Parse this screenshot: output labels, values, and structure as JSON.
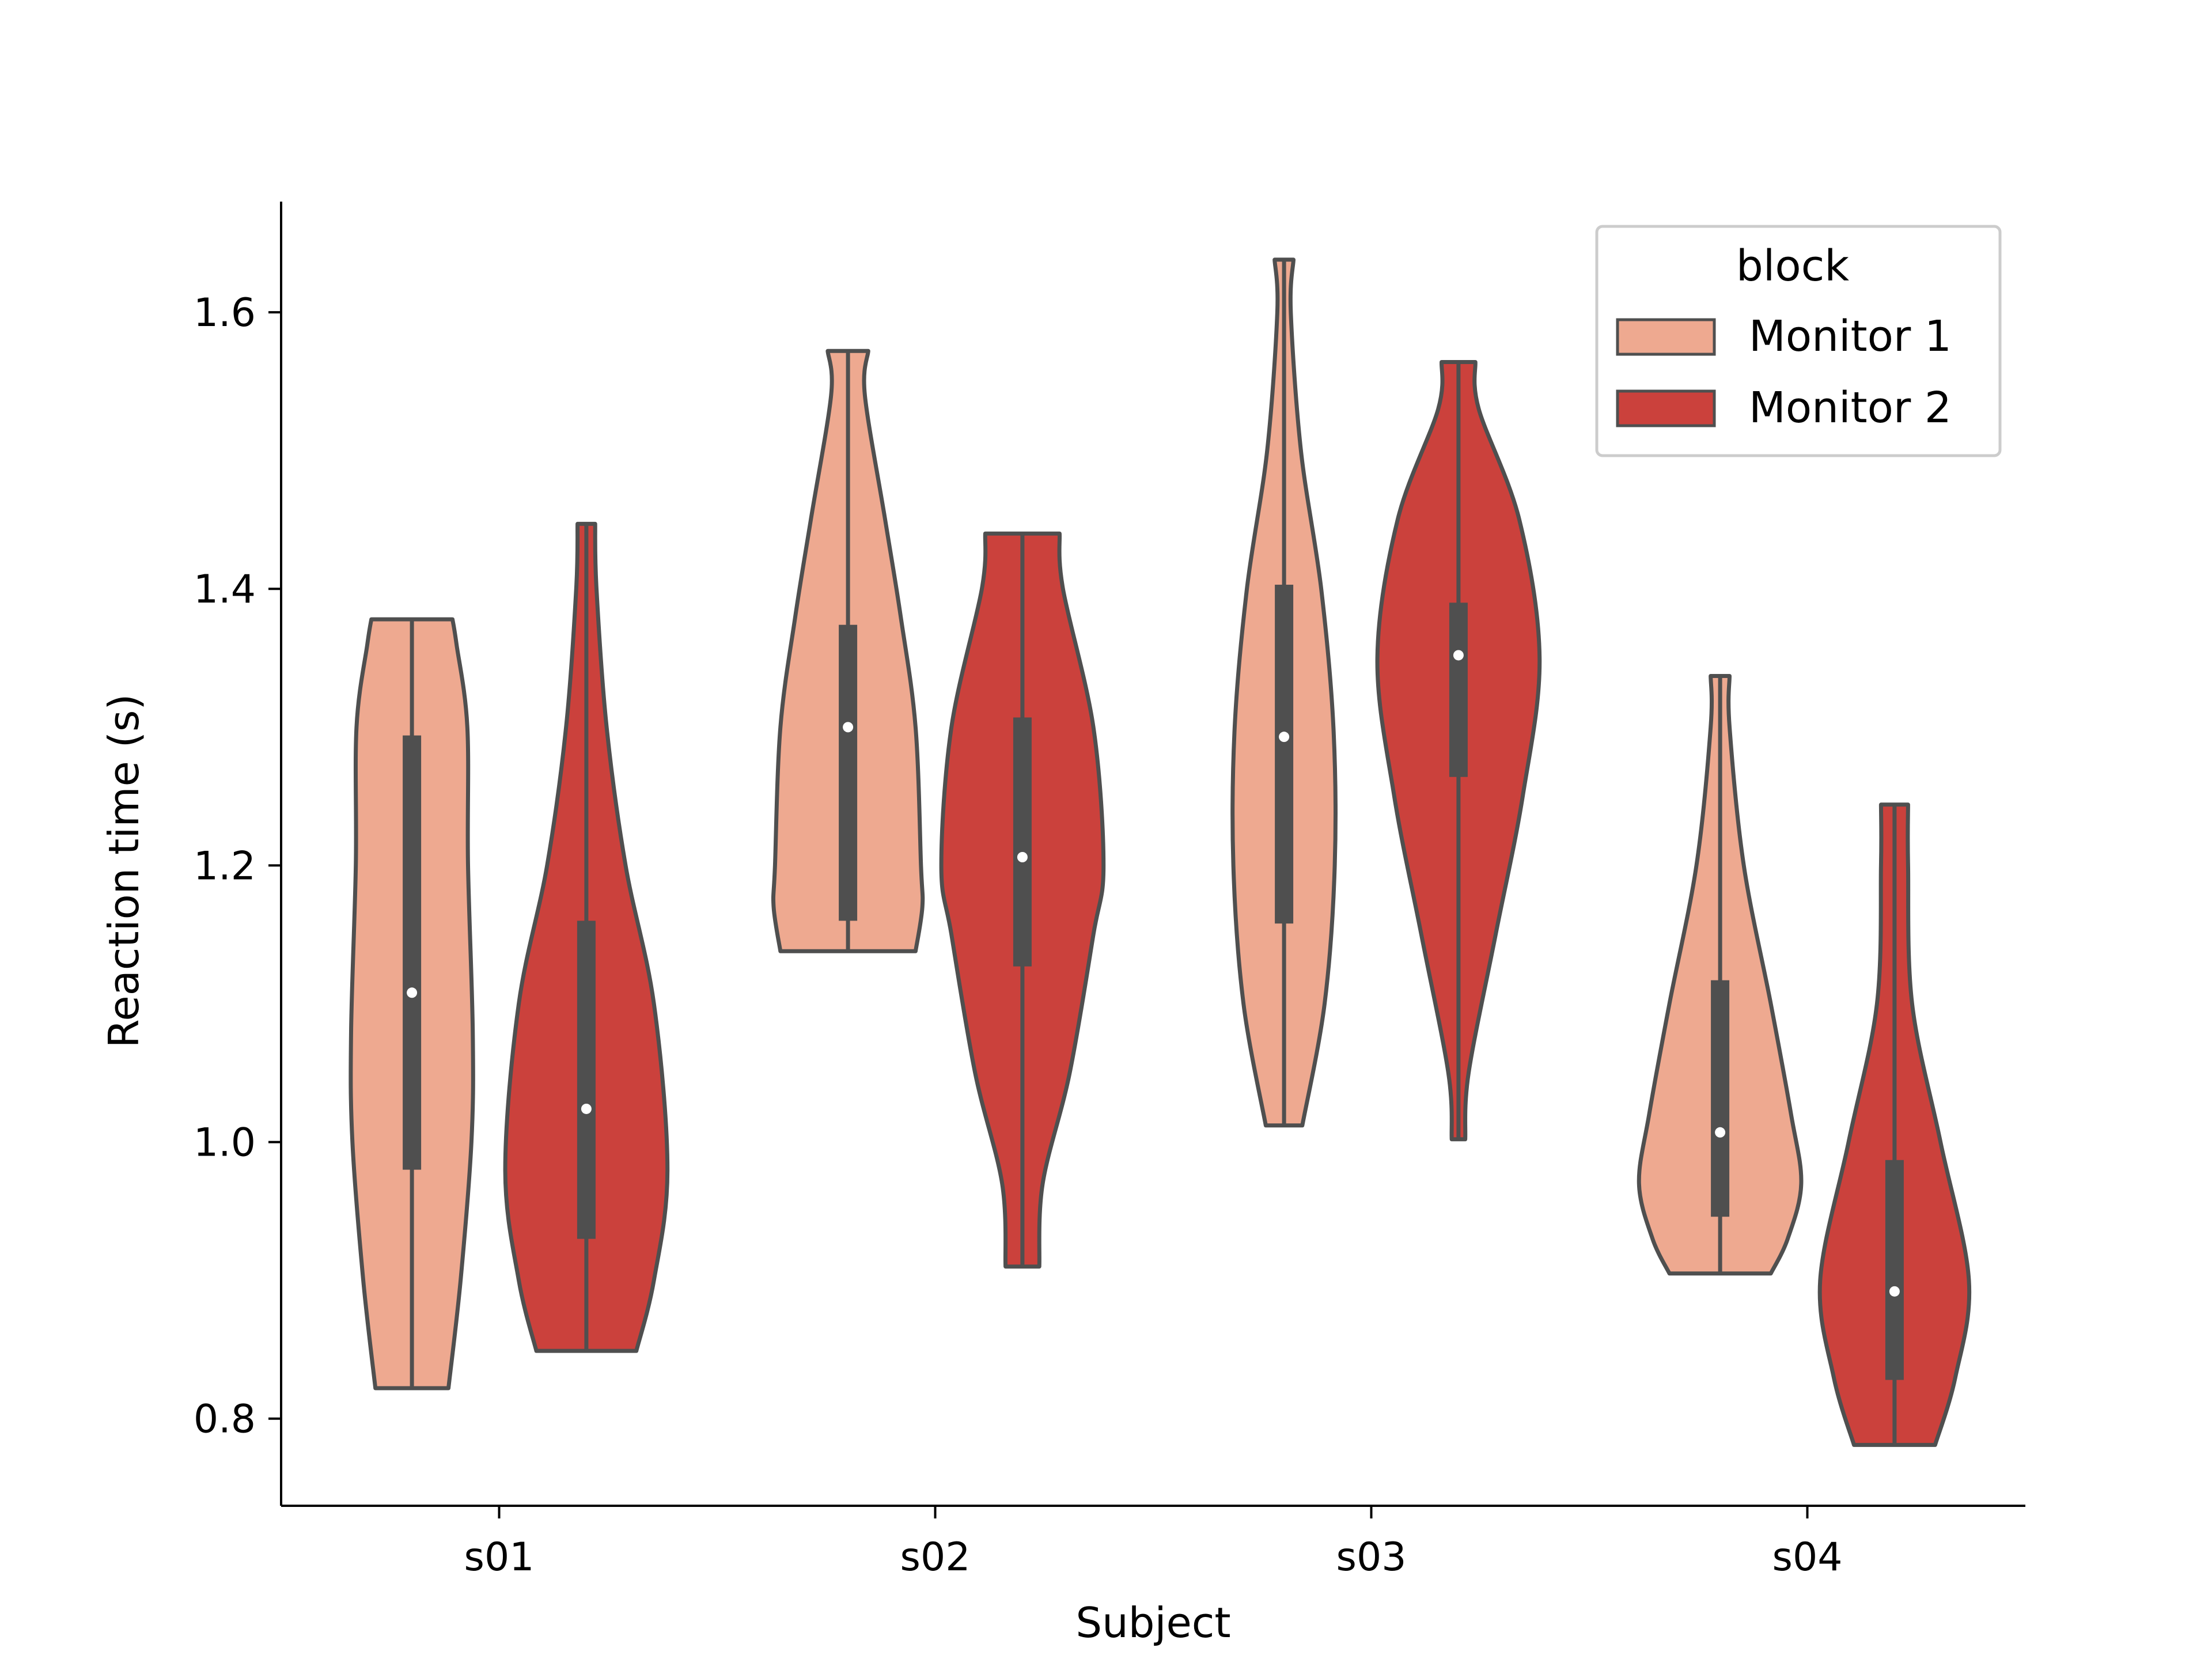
{
  "chart_data": {
    "type": "violin",
    "xlabel": "Subject",
    "ylabel": "Reaction time (s)",
    "categories": [
      "s01",
      "s02",
      "s03",
      "s04"
    ],
    "ylim": [
      0.737,
      1.68
    ],
    "yticks": [
      "0.8",
      "1.0",
      "1.2",
      "1.4",
      "1.6"
    ],
    "legend": {
      "title": "block",
      "position": "top-right",
      "entries": [
        {
          "name": "Monitor 1",
          "color": "#eea990"
        },
        {
          "name": "Monitor 2",
          "color": "#cb413c"
        }
      ]
    },
    "grid": false,
    "colors": {
      "outline": "#4f4f4f",
      "monitor1": "#eea990",
      "monitor2": "#cb413c"
    },
    "series": [
      {
        "name": "Monitor 1",
        "color": "#eea990",
        "violins": [
          {
            "category": "s01",
            "min": 0.822,
            "max": 1.378,
            "q1": 0.98,
            "median": 1.108,
            "q3": 1.294,
            "profile": [
              [
                0.822,
                0.54
              ],
              [
                0.9,
                0.72
              ],
              [
                1.0,
                0.88
              ],
              [
                1.08,
                0.9
              ],
              [
                1.2,
                0.83
              ],
              [
                1.3,
                0.82
              ],
              [
                1.36,
                0.66
              ],
              [
                1.378,
                0.6
              ]
            ]
          },
          {
            "category": "s02",
            "min": 1.138,
            "max": 1.572,
            "q1": 1.16,
            "median": 1.3,
            "q3": 1.374,
            "profile": [
              [
                1.138,
                1.0
              ],
              [
                1.17,
                1.1
              ],
              [
                1.2,
                1.08
              ],
              [
                1.3,
                1.0
              ],
              [
                1.38,
                0.78
              ],
              [
                1.45,
                0.55
              ],
              [
                1.54,
                0.25
              ],
              [
                1.572,
                0.3
              ]
            ]
          },
          {
            "category": "s03",
            "min": 1.012,
            "max": 1.638,
            "q1": 1.158,
            "median": 1.293,
            "q3": 1.403,
            "profile": [
              [
                1.012,
                0.27
              ],
              [
                1.1,
                0.6
              ],
              [
                1.2,
                0.75
              ],
              [
                1.3,
                0.73
              ],
              [
                1.4,
                0.55
              ],
              [
                1.5,
                0.25
              ],
              [
                1.6,
                0.1
              ],
              [
                1.638,
                0.14
              ]
            ]
          },
          {
            "category": "s04",
            "min": 0.905,
            "max": 1.337,
            "q1": 0.946,
            "median": 1.007,
            "q3": 1.117,
            "profile": [
              [
                0.905,
                0.75
              ],
              [
                0.93,
                1.0
              ],
              [
                0.97,
                1.2
              ],
              [
                1.02,
                1.05
              ],
              [
                1.1,
                0.75
              ],
              [
                1.2,
                0.35
              ],
              [
                1.3,
                0.14
              ],
              [
                1.337,
                0.14
              ]
            ]
          }
        ]
      },
      {
        "name": "Monitor 2",
        "color": "#cb413c",
        "violins": [
          {
            "category": "s01",
            "min": 0.849,
            "max": 1.447,
            "q1": 0.93,
            "median": 1.024,
            "q3": 1.16,
            "profile": [
              [
                0.849,
                0.74
              ],
              [
                0.9,
                1.0
              ],
              [
                0.98,
                1.2
              ],
              [
                1.1,
                1.0
              ],
              [
                1.2,
                0.58
              ],
              [
                1.3,
                0.3
              ],
              [
                1.4,
                0.15
              ],
              [
                1.447,
                0.13
              ]
            ]
          },
          {
            "category": "s02",
            "min": 0.91,
            "max": 1.44,
            "q1": 1.127,
            "median": 1.206,
            "q3": 1.307,
            "profile": [
              [
                0.91,
                0.25
              ],
              [
                0.97,
                0.3
              ],
              [
                1.05,
                0.7
              ],
              [
                1.15,
                1.05
              ],
              [
                1.2,
                1.2
              ],
              [
                1.3,
                1.05
              ],
              [
                1.4,
                0.6
              ],
              [
                1.44,
                0.55
              ]
            ]
          },
          {
            "category": "s03",
            "min": 1.002,
            "max": 1.564,
            "q1": 1.264,
            "median": 1.352,
            "q3": 1.39,
            "profile": [
              [
                1.002,
                0.1
              ],
              [
                1.05,
                0.15
              ],
              [
                1.15,
                0.55
              ],
              [
                1.25,
                0.95
              ],
              [
                1.35,
                1.2
              ],
              [
                1.45,
                0.9
              ],
              [
                1.53,
                0.3
              ],
              [
                1.564,
                0.25
              ]
            ]
          },
          {
            "category": "s04",
            "min": 0.781,
            "max": 1.244,
            "q1": 0.828,
            "median": 0.892,
            "q3": 0.987,
            "profile": [
              [
                0.781,
                0.6
              ],
              [
                0.83,
                0.9
              ],
              [
                0.9,
                1.1
              ],
              [
                1.0,
                0.68
              ],
              [
                1.1,
                0.26
              ],
              [
                1.2,
                0.2
              ],
              [
                1.244,
                0.2
              ]
            ]
          }
        ]
      }
    ]
  }
}
